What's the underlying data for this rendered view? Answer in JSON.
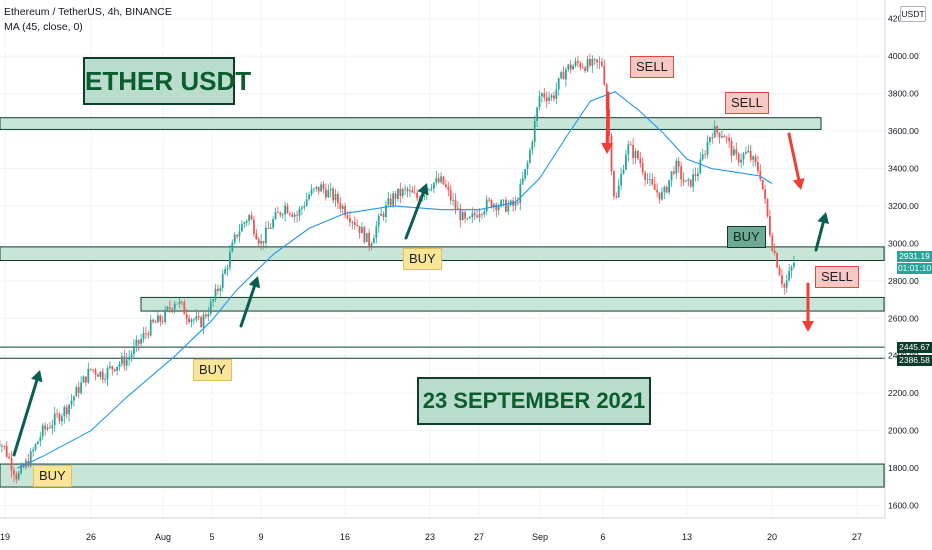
{
  "header": {
    "symbol_line": "Ethereum / TetherUS, 4h, BINANCE",
    "indicator_line": "MA (45, close, 0)",
    "currency": "USDT"
  },
  "annotations": {
    "title": "ETHER USDT",
    "date": "23 SEPTEMBER 2021",
    "sell_labels": [
      "SELL",
      "SELL",
      "SELL"
    ],
    "buy_labels": [
      "BUY",
      "BUY",
      "BUY",
      "BUY"
    ]
  },
  "price_tags": {
    "last_price": "2931.19",
    "countdown": "01:01:10",
    "level_upper": "2445.67",
    "level_lower": "2386.58",
    "last_color": "#26a69a",
    "level_color": "#0d3b2c"
  },
  "colors": {
    "up_candle": "#26a69a",
    "down_candle": "#ef5350",
    "ma_line": "#2196f3",
    "zone_fill": "#c8e6d8",
    "zone_border": "#0f3d2b",
    "arrow_green": "#0b5d52",
    "arrow_red": "#ef3e36"
  },
  "chart_data": {
    "type": "candlestick",
    "title": "Ethereum / TetherUS, 4h, BINANCE",
    "x_tick_labels": [
      "19",
      "26",
      "Aug",
      "5",
      "9",
      "16",
      "23",
      "27",
      "Sep",
      "6",
      "13",
      "20",
      "27"
    ],
    "y_tick_labels": [
      "1600.00",
      "1800.00",
      "2000.00",
      "2200.00",
      "2400.00",
      "2600.00",
      "2800.00",
      "3000.00",
      "3200.00",
      "3400.00",
      "3600.00",
      "3800.00",
      "4000.00",
      "4200.00"
    ],
    "ylim": [
      1520,
      4260
    ],
    "y_ticks": [
      1600,
      1800,
      2000,
      2200,
      2400,
      2600,
      2800,
      3000,
      3200,
      3400,
      3600,
      3800,
      4000,
      4200
    ],
    "series": [
      {
        "name": "Ethereum / TetherUS",
        "kind": "close_path",
        "points": [
          [
            "Jul 18",
            2000
          ],
          [
            "Jul 19",
            1900
          ],
          [
            "Jul 20",
            1750
          ],
          [
            "Jul 21",
            1850
          ],
          [
            "Jul 22",
            1990
          ],
          [
            "Jul 24",
            2120
          ],
          [
            "Jul 26",
            2330
          ],
          [
            "Jul 27",
            2300
          ],
          [
            "Jul 28",
            2350
          ],
          [
            "Jul 29",
            2380
          ],
          [
            "Jul 31",
            2560
          ],
          [
            "Aug 1",
            2600
          ],
          [
            "Aug 2",
            2700
          ],
          [
            "Aug 3",
            2620
          ],
          [
            "Aug 4",
            2570
          ],
          [
            "Aug 5",
            2680
          ],
          [
            "Aug 6",
            2840
          ],
          [
            "Aug 7",
            3050
          ],
          [
            "Aug 8",
            3150
          ],
          [
            "Aug 9",
            3000
          ],
          [
            "Aug 10",
            3120
          ],
          [
            "Aug 11",
            3200
          ],
          [
            "Aug 12",
            3150
          ],
          [
            "Aug 13",
            3260
          ],
          [
            "Aug 14",
            3300
          ],
          [
            "Aug 15",
            3250
          ],
          [
            "Aug 16",
            3180
          ],
          [
            "Aug 17",
            3100
          ],
          [
            "Aug 18",
            3000
          ],
          [
            "Aug 19",
            3150
          ],
          [
            "Aug 20",
            3250
          ],
          [
            "Aug 21",
            3280
          ],
          [
            "Aug 22",
            3240
          ],
          [
            "Aug 23",
            3320
          ],
          [
            "Aug 24",
            3330
          ],
          [
            "Aug 25",
            3200
          ],
          [
            "Aug 26",
            3100
          ],
          [
            "Aug 27",
            3180
          ],
          [
            "Aug 28",
            3220
          ],
          [
            "Aug 29",
            3200
          ],
          [
            "Aug 30",
            3200
          ],
          [
            "Aug 31",
            3430
          ],
          [
            "Sep 1",
            3800
          ],
          [
            "Sep 2",
            3780
          ],
          [
            "Sep 3",
            3930
          ],
          [
            "Sep 4",
            3960
          ],
          [
            "Sep 5",
            3950
          ],
          [
            "Sep 6",
            3960
          ],
          [
            "Sep 7",
            3200
          ],
          [
            "Sep 8",
            3520
          ],
          [
            "Sep 9",
            3450
          ],
          [
            "Sep 10",
            3300
          ],
          [
            "Sep 11",
            3250
          ],
          [
            "Sep 12",
            3420
          ],
          [
            "Sep 13",
            3300
          ],
          [
            "Sep 14",
            3400
          ],
          [
            "Sep 15",
            3600
          ],
          [
            "Sep 16",
            3590
          ],
          [
            "Sep 17",
            3450
          ],
          [
            "Sep 18",
            3480
          ],
          [
            "Sep 19",
            3380
          ],
          [
            "Sep 20",
            3000
          ],
          [
            "Sep 21",
            2760
          ],
          [
            "Sep 22",
            2931.19
          ]
        ]
      },
      {
        "name": "MA (45, close, 0)",
        "kind": "line",
        "points": [
          [
            "Jul 20",
            1800
          ],
          [
            "Jul 22",
            1860
          ],
          [
            "Jul 26",
            2000
          ],
          [
            "Jul 29",
            2180
          ],
          [
            "Aug 2",
            2400
          ],
          [
            "Aug 5",
            2590
          ],
          [
            "Aug 7",
            2750
          ],
          [
            "Aug 10",
            2940
          ],
          [
            "Aug 13",
            3080
          ],
          [
            "Aug 16",
            3160
          ],
          [
            "Aug 20",
            3200
          ],
          [
            "Aug 24",
            3180
          ],
          [
            "Aug 27",
            3180
          ],
          [
            "Aug 30",
            3220
          ],
          [
            "Sep 1",
            3350
          ],
          [
            "Sep 3",
            3560
          ],
          [
            "Sep 5",
            3760
          ],
          [
            "Sep 7",
            3810
          ],
          [
            "Sep 9",
            3710
          ],
          [
            "Sep 11",
            3590
          ],
          [
            "Sep 13",
            3450
          ],
          [
            "Sep 15",
            3400
          ],
          [
            "Sep 17",
            3380
          ],
          [
            "Sep 19",
            3360
          ],
          [
            "Sep 20",
            3320
          ]
        ]
      }
    ],
    "zones": [
      {
        "low": 3630,
        "high": 3650
      },
      {
        "low": 2930,
        "high": 2960
      },
      {
        "low": 2660,
        "high": 2690
      },
      {
        "low": 1720,
        "high": 1800
      }
    ],
    "levels": [
      2445.67,
      2386.58
    ],
    "last_price": 2931.19
  }
}
